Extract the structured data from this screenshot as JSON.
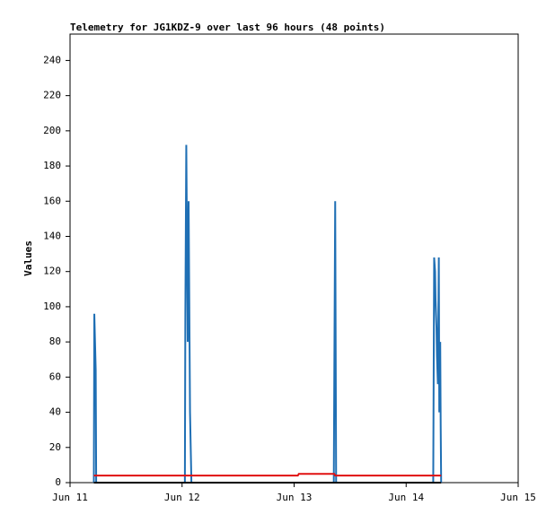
{
  "chart_data": {
    "type": "line",
    "title": "Telemetry for JG1KDZ-9 over last 96 hours (48 points)",
    "y_label": "Values",
    "x": [
      5.1,
      5.2,
      5.5,
      5.6,
      8,
      10,
      12,
      15,
      18,
      20,
      24.6,
      24.7,
      24.9,
      25.1,
      25.2,
      25.4,
      25.5,
      25.7,
      26.0,
      30,
      33,
      35,
      40,
      42,
      45,
      48.8,
      49.0,
      52,
      56.5,
      56.6,
      56.8,
      57.0,
      60,
      65,
      70,
      75,
      77.8,
      78.0,
      78.2,
      78.3,
      78.5,
      78.6,
      78.8,
      79.0,
      79.1,
      79.3,
      79.4,
      79.5
    ],
    "series": [
      {
        "color": "#1f6fb4",
        "values": [
          0,
          96,
          64,
          0,
          0,
          0,
          0,
          0,
          0,
          0,
          0,
          96,
          192,
          120,
          80,
          160,
          120,
          40,
          0,
          0,
          0,
          0,
          0,
          0,
          0,
          0,
          0,
          0,
          0,
          56,
          160,
          0,
          0,
          0,
          0,
          0,
          0,
          128,
          120,
          104,
          88,
          72,
          56,
          128,
          40,
          80,
          32,
          0
        ]
      },
      {
        "color": "#e01010",
        "values": [
          4,
          4,
          4,
          4,
          4,
          4,
          4,
          4,
          4,
          4,
          4,
          4,
          4,
          4,
          4,
          4,
          4,
          4,
          4,
          4,
          4,
          4,
          4,
          4,
          4,
          4,
          5,
          5,
          5,
          5,
          4,
          4,
          4,
          4,
          4,
          4,
          4,
          4,
          4,
          4,
          4,
          4,
          4,
          4,
          4,
          4,
          4,
          4
        ]
      },
      {
        "color": "#000000",
        "values": [
          0,
          0,
          0,
          0,
          0,
          0,
          0,
          0,
          0,
          0,
          0,
          0,
          0,
          0,
          0,
          0,
          0,
          0,
          0,
          0,
          0,
          0,
          0,
          0,
          0,
          0,
          0,
          0,
          0,
          0,
          0,
          0,
          0,
          0,
          0,
          0,
          0,
          0,
          0,
          0,
          0,
          0,
          0,
          0,
          0,
          0,
          0,
          0
        ]
      }
    ],
    "xlim": [
      0,
      96
    ],
    "xticks": [
      {
        "value": 0,
        "label": "Jun 11"
      },
      {
        "value": 24,
        "label": "Jun 12"
      },
      {
        "value": 48,
        "label": "Jun 13"
      },
      {
        "value": 72,
        "label": "Jun 14"
      },
      {
        "value": 96,
        "label": "Jun 15"
      }
    ],
    "ylim": [
      0,
      255
    ],
    "yticks": [
      0,
      20,
      40,
      60,
      80,
      100,
      120,
      140,
      160,
      180,
      200,
      220,
      240
    ],
    "grid": false
  }
}
